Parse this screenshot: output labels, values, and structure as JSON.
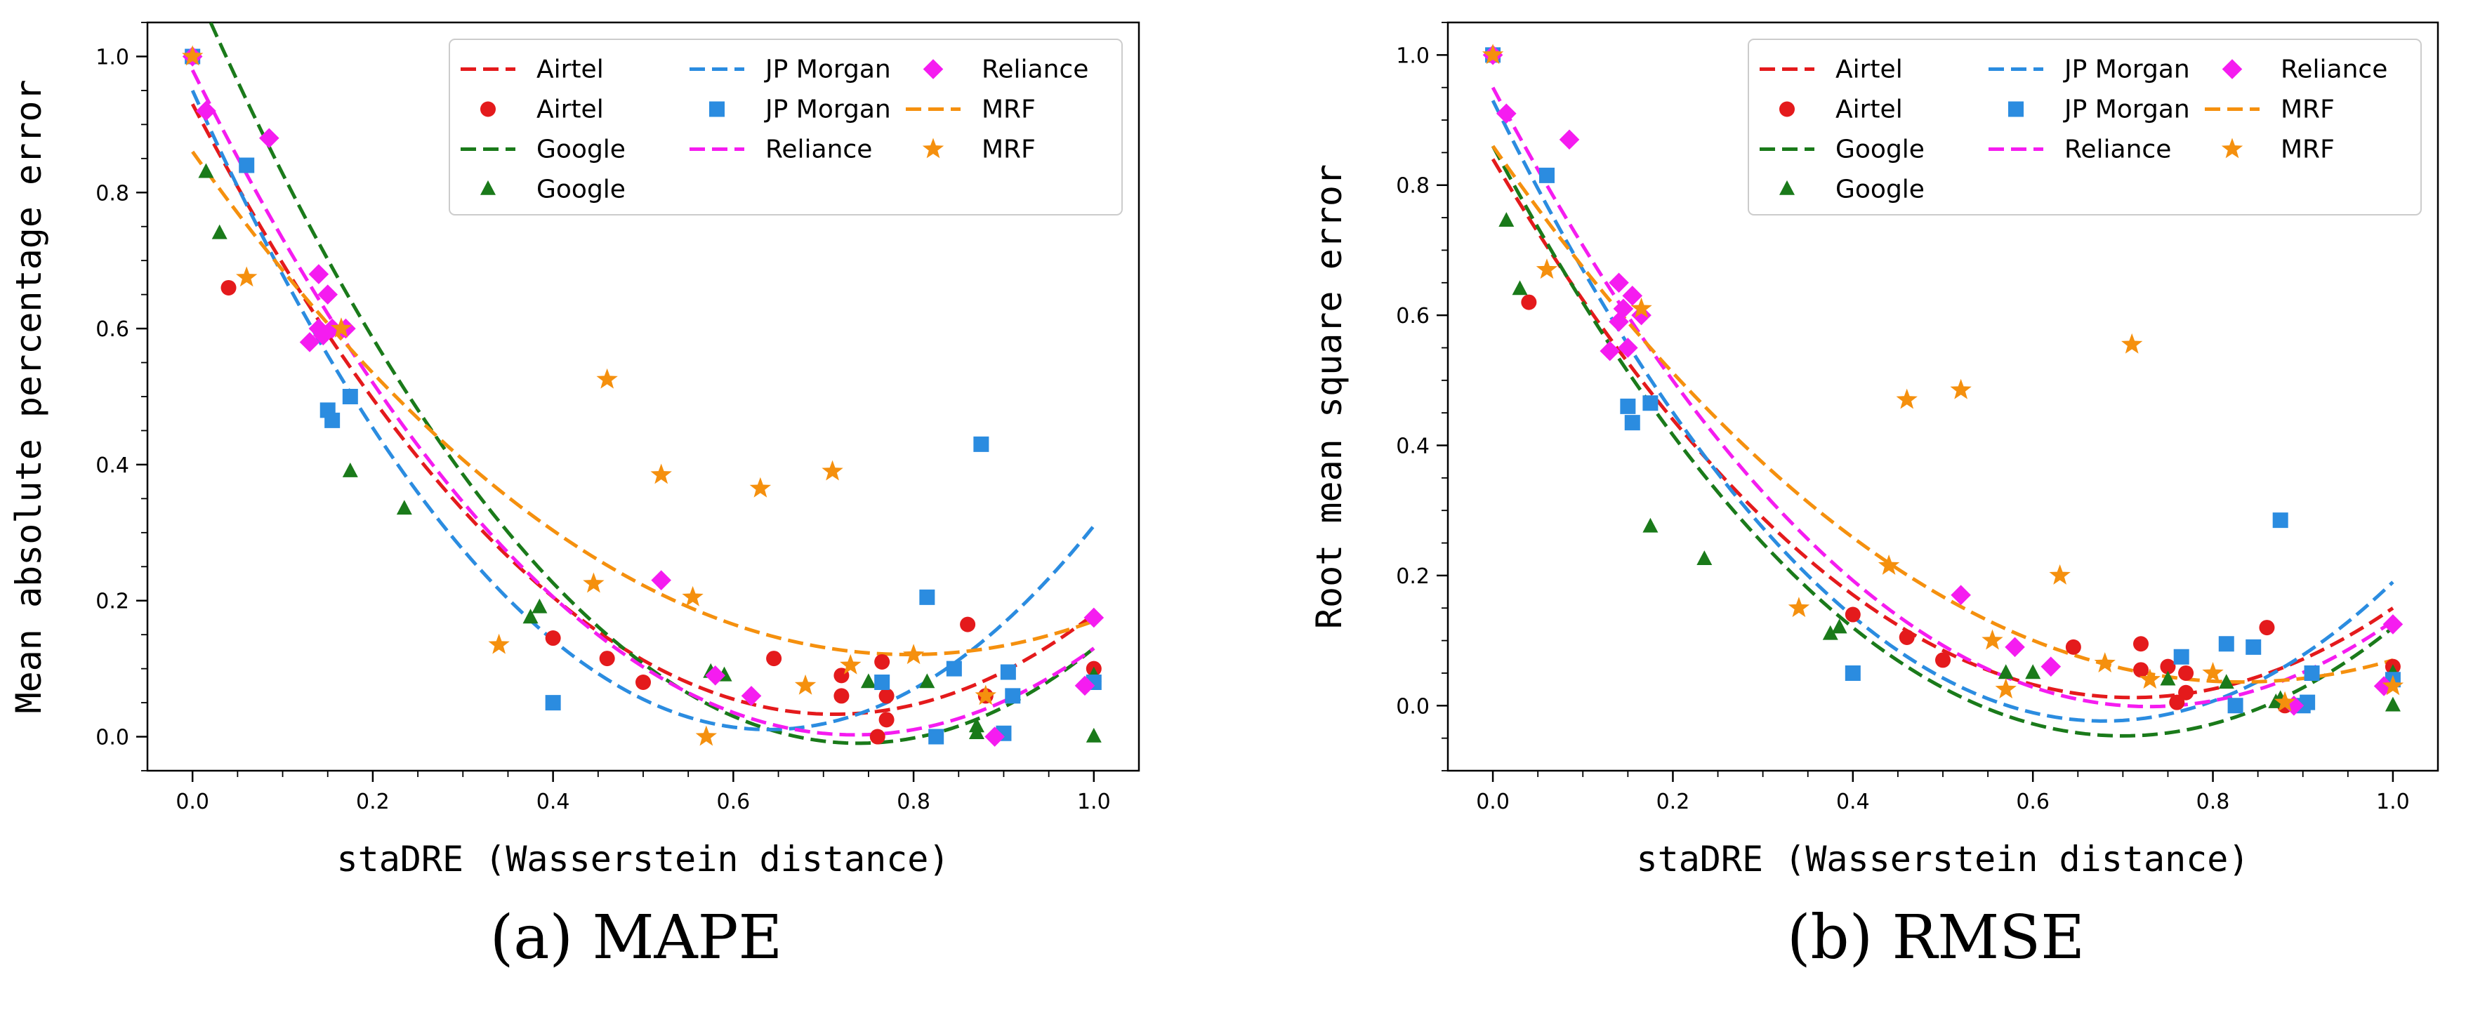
{
  "colors": {
    "Airtel": "#e41a1c",
    "Google": "#1a7a1a",
    "JP Morgan": "#2b8ce0",
    "Reliance": "#f51cf0",
    "MRF": "#f5900e"
  },
  "legend_entries": [
    {
      "label": "Airtel",
      "kind": "fit",
      "series": "Airtel"
    },
    {
      "label": "Airtel",
      "kind": "points",
      "series": "Airtel"
    },
    {
      "label": "Google",
      "kind": "fit",
      "series": "Google"
    },
    {
      "label": "Google",
      "kind": "points",
      "series": "Google"
    },
    {
      "label": "JP Morgan",
      "kind": "fit",
      "series": "JP Morgan"
    },
    {
      "label": "JP Morgan",
      "kind": "points",
      "series": "JP Morgan"
    },
    {
      "label": "Reliance",
      "kind": "fit",
      "series": "Reliance"
    },
    {
      "label": "Reliance",
      "kind": "points",
      "series": "Reliance"
    },
    {
      "label": "MRF",
      "kind": "fit",
      "series": "MRF"
    },
    {
      "label": "MRF",
      "kind": "points",
      "series": "MRF"
    }
  ],
  "chart_data": [
    {
      "type": "scatter",
      "panel_caption": "(a) MAPE",
      "xlabel": "staDRE (Wasserstein distance)",
      "ylabel": "Mean absolute percentage error",
      "xlim": [
        -0.05,
        1.05
      ],
      "ylim": [
        -0.05,
        1.05
      ],
      "xticks": [
        0.0,
        0.2,
        0.4,
        0.6,
        0.8,
        1.0
      ],
      "yticks": [
        0.0,
        0.2,
        0.4,
        0.6,
        0.8,
        1.0
      ],
      "xtick_labels": [
        "0.0",
        "0.2",
        "0.4",
        "0.6",
        "0.8",
        "1.0"
      ],
      "ytick_labels": [
        "0.0",
        "0.2",
        "0.4",
        "0.6",
        "0.8",
        "1.0"
      ],
      "legend_location": "top-right",
      "grid": false,
      "series": [
        {
          "name": "Airtel",
          "marker": "circle",
          "fit": {
            "kind": "quadratic",
            "a": 1.77,
            "b": -2.52,
            "c": 0.93
          },
          "points": [
            [
              0.0,
              1.0
            ],
            [
              0.04,
              0.66
            ],
            [
              0.4,
              0.145
            ],
            [
              0.46,
              0.115
            ],
            [
              0.5,
              0.08
            ],
            [
              0.645,
              0.115
            ],
            [
              0.72,
              0.06
            ],
            [
              0.72,
              0.09
            ],
            [
              0.76,
              0.0
            ],
            [
              0.765,
              0.11
            ],
            [
              0.77,
              0.025
            ],
            [
              0.77,
              0.06
            ],
            [
              0.86,
              0.165
            ],
            [
              0.88,
              0.06
            ],
            [
              1.0,
              0.1
            ]
          ]
        },
        {
          "name": "Google",
          "marker": "triangle",
          "fit": {
            "kind": "quadratic",
            "a": 2.05,
            "b": -3.03,
            "c": 1.11
          },
          "points": [
            [
              0.0,
              1.0
            ],
            [
              0.015,
              0.83
            ],
            [
              0.03,
              0.74
            ],
            [
              0.175,
              0.39
            ],
            [
              0.235,
              0.335
            ],
            [
              0.375,
              0.175
            ],
            [
              0.385,
              0.19
            ],
            [
              0.575,
              0.095
            ],
            [
              0.59,
              0.09
            ],
            [
              0.75,
              0.08
            ],
            [
              0.815,
              0.08
            ],
            [
              0.87,
              0.015
            ],
            [
              0.87,
              0.005
            ],
            [
              1.0,
              0.0
            ],
            [
              1.0,
              0.09
            ]
          ]
        },
        {
          "name": "JP Morgan",
          "marker": "square",
          "fit": {
            "kind": "quadratic",
            "a": 2.3,
            "b": -2.94,
            "c": 0.95
          },
          "points": [
            [
              0.0,
              1.0
            ],
            [
              0.06,
              0.84
            ],
            [
              0.15,
              0.48
            ],
            [
              0.155,
              0.465
            ],
            [
              0.175,
              0.5
            ],
            [
              0.4,
              0.05
            ],
            [
              0.765,
              0.08
            ],
            [
              0.815,
              0.205
            ],
            [
              0.825,
              0.0
            ],
            [
              0.845,
              0.1
            ],
            [
              0.875,
              0.43
            ],
            [
              0.9,
              0.005
            ],
            [
              0.905,
              0.095
            ],
            [
              0.91,
              0.06
            ],
            [
              1.0,
              0.08
            ]
          ]
        },
        {
          "name": "Reliance",
          "marker": "diamond",
          "fit": {
            "kind": "quadratic",
            "a": 1.81,
            "b": -2.66,
            "c": 0.98
          },
          "points": [
            [
              0.0,
              1.0
            ],
            [
              0.015,
              0.92
            ],
            [
              0.085,
              0.88
            ],
            [
              0.13,
              0.58
            ],
            [
              0.14,
              0.68
            ],
            [
              0.14,
              0.6
            ],
            [
              0.145,
              0.59
            ],
            [
              0.15,
              0.65
            ],
            [
              0.155,
              0.6
            ],
            [
              0.17,
              0.6
            ],
            [
              0.52,
              0.23
            ],
            [
              0.58,
              0.09
            ],
            [
              0.62,
              0.06
            ],
            [
              0.89,
              0.0
            ],
            [
              0.99,
              0.075
            ],
            [
              1.0,
              0.175
            ]
          ]
        },
        {
          "name": "MRF",
          "marker": "star",
          "fit": {
            "kind": "quadratic",
            "a": 1.17,
            "b": -1.86,
            "c": 0.86
          },
          "points": [
            [
              0.0,
              1.0
            ],
            [
              0.06,
              0.675
            ],
            [
              0.165,
              0.6
            ],
            [
              0.34,
              0.135
            ],
            [
              0.445,
              0.225
            ],
            [
              0.46,
              0.525
            ],
            [
              0.52,
              0.385
            ],
            [
              0.555,
              0.205
            ],
            [
              0.57,
              0.0
            ],
            [
              0.63,
              0.365
            ],
            [
              0.68,
              0.075
            ],
            [
              0.71,
              0.39
            ],
            [
              0.73,
              0.105
            ],
            [
              0.8,
              0.12
            ],
            [
              0.88,
              0.06
            ]
          ]
        }
      ]
    },
    {
      "type": "scatter",
      "panel_caption": "(b) RMSE",
      "xlabel": "staDRE (Wasserstein distance)",
      "ylabel": "Root mean square error",
      "xlim": [
        -0.05,
        1.05
      ],
      "ylim": [
        -0.1,
        1.05
      ],
      "xticks": [
        0.0,
        0.2,
        0.4,
        0.6,
        0.8,
        1.0
      ],
      "yticks": [
        0.0,
        0.2,
        0.4,
        0.6,
        0.8,
        1.0
      ],
      "xtick_labels": [
        "0.0",
        "0.2",
        "0.4",
        "0.6",
        "0.8",
        "1.0"
      ],
      "ytick_labels": [
        "0.0",
        "0.2",
        "0.4",
        "0.6",
        "0.8",
        "1.0"
      ],
      "legend_location": "top-right",
      "grid": false,
      "series": [
        {
          "name": "Airtel",
          "marker": "circle",
          "fit": {
            "kind": "quadratic",
            "a": 1.64,
            "b": -2.33,
            "c": 0.84
          },
          "points": [
            [
              0.0,
              1.0
            ],
            [
              0.04,
              0.62
            ],
            [
              0.4,
              0.14
            ],
            [
              0.46,
              0.105
            ],
            [
              0.5,
              0.07
            ],
            [
              0.645,
              0.09
            ],
            [
              0.72,
              0.055
            ],
            [
              0.72,
              0.095
            ],
            [
              0.75,
              0.06
            ],
            [
              0.76,
              0.005
            ],
            [
              0.77,
              0.05
            ],
            [
              0.77,
              0.02
            ],
            [
              0.86,
              0.12
            ],
            [
              0.88,
              0.0
            ],
            [
              1.0,
              0.06
            ]
          ]
        },
        {
          "name": "Google",
          "marker": "triangle",
          "fit": {
            "kind": "quadratic",
            "a": 1.85,
            "b": -2.59,
            "c": 0.86
          },
          "points": [
            [
              0.0,
              1.0
            ],
            [
              0.015,
              0.745
            ],
            [
              0.03,
              0.64
            ],
            [
              0.175,
              0.275
            ],
            [
              0.235,
              0.225
            ],
            [
              0.375,
              0.11
            ],
            [
              0.385,
              0.12
            ],
            [
              0.57,
              0.05
            ],
            [
              0.6,
              0.05
            ],
            [
              0.75,
              0.04
            ],
            [
              0.815,
              0.035
            ],
            [
              0.87,
              0.005
            ],
            [
              0.875,
              0.01
            ],
            [
              1.0,
              0.0
            ],
            [
              1.0,
              0.05
            ]
          ]
        },
        {
          "name": "JP Morgan",
          "marker": "square",
          "fit": {
            "kind": "quadratic",
            "a": 2.07,
            "b": -2.81,
            "c": 0.93
          },
          "points": [
            [
              0.0,
              1.0
            ],
            [
              0.06,
              0.815
            ],
            [
              0.15,
              0.46
            ],
            [
              0.155,
              0.435
            ],
            [
              0.175,
              0.465
            ],
            [
              0.4,
              0.05
            ],
            [
              0.765,
              0.075
            ],
            [
              0.815,
              0.095
            ],
            [
              0.825,
              0.0
            ],
            [
              0.845,
              0.09
            ],
            [
              0.875,
              0.285
            ],
            [
              0.9,
              0.0
            ],
            [
              0.905,
              0.005
            ],
            [
              0.91,
              0.05
            ],
            [
              1.0,
              0.04
            ]
          ]
        },
        {
          "name": "Reliance",
          "marker": "diamond",
          "fit": {
            "kind": "quadratic",
            "a": 1.79,
            "b": -2.61,
            "c": 0.95
          },
          "points": [
            [
              0.0,
              1.0
            ],
            [
              0.015,
              0.91
            ],
            [
              0.085,
              0.87
            ],
            [
              0.13,
              0.545
            ],
            [
              0.14,
              0.65
            ],
            [
              0.14,
              0.59
            ],
            [
              0.145,
              0.61
            ],
            [
              0.15,
              0.55
            ],
            [
              0.155,
              0.63
            ],
            [
              0.165,
              0.6
            ],
            [
              0.52,
              0.17
            ],
            [
              0.58,
              0.09
            ],
            [
              0.62,
              0.06
            ],
            [
              0.89,
              0.0
            ],
            [
              0.99,
              0.03
            ],
            [
              1.0,
              0.125
            ]
          ]
        },
        {
          "name": "MRF",
          "marker": "star",
          "fit": {
            "kind": "quadratic",
            "a": 1.19,
            "b": -1.98,
            "c": 0.86
          },
          "points": [
            [
              0.0,
              1.0
            ],
            [
              0.06,
              0.67
            ],
            [
              0.165,
              0.61
            ],
            [
              0.34,
              0.15
            ],
            [
              0.44,
              0.215
            ],
            [
              0.46,
              0.47
            ],
            [
              0.52,
              0.485
            ],
            [
              0.555,
              0.1
            ],
            [
              0.57,
              0.025
            ],
            [
              0.63,
              0.2
            ],
            [
              0.68,
              0.065
            ],
            [
              0.71,
              0.555
            ],
            [
              0.73,
              0.04
            ],
            [
              0.8,
              0.05
            ],
            [
              0.88,
              0.005
            ],
            [
              1.0,
              0.03
            ]
          ]
        }
      ]
    }
  ]
}
